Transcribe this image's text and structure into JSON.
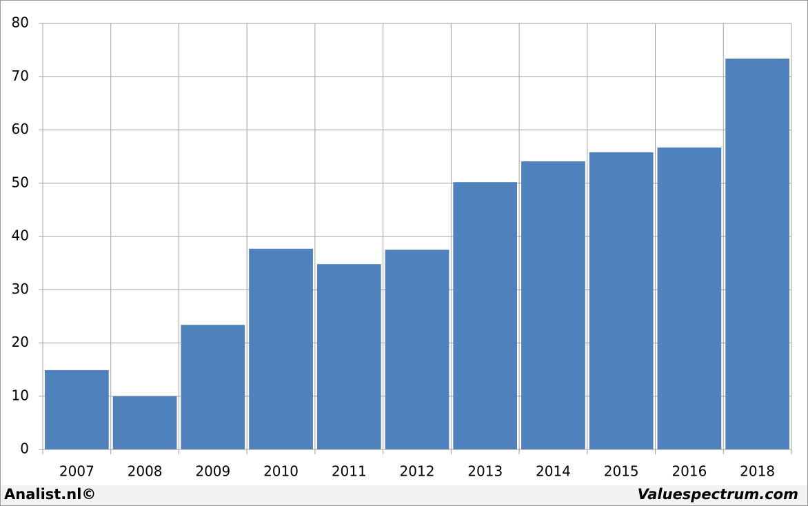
{
  "chart_data": {
    "type": "bar",
    "categories": [
      "2007",
      "2008",
      "2009",
      "2010",
      "2011",
      "2012",
      "2013",
      "2014",
      "2015",
      "2016",
      "2018"
    ],
    "values": [
      14.9,
      10.0,
      23.4,
      37.7,
      34.8,
      37.5,
      50.2,
      54.1,
      55.8,
      56.7,
      73.4
    ],
    "color": "#4f81bd",
    "ylim": [
      0,
      80
    ],
    "yticks": [
      0,
      10,
      20,
      30,
      40,
      50,
      60,
      70,
      80
    ],
    "grid": true
  },
  "footer_left": "Analist.nl©",
  "footer_right": "Valuespectrum.com"
}
